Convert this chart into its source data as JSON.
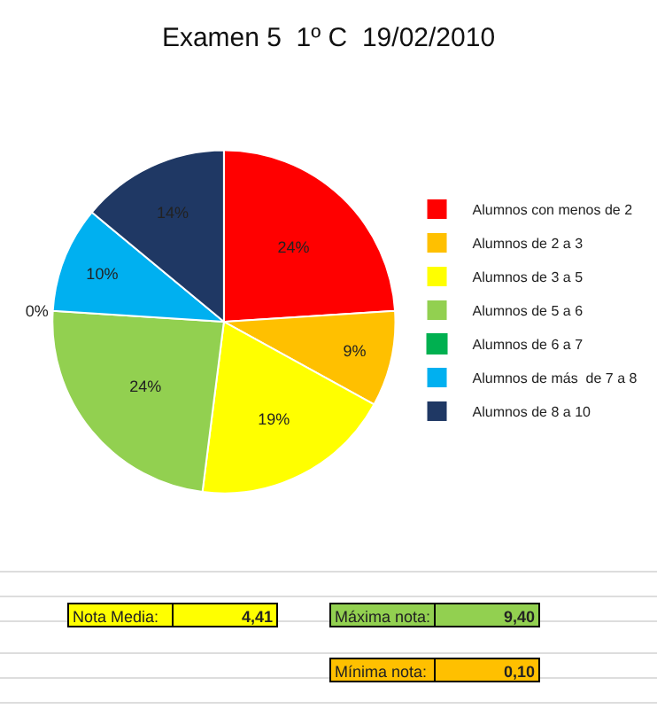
{
  "chart_data": {
    "type": "pie",
    "title": "Examen 5  1º C  19/02/2010",
    "categories": [
      "Alumnos con menos de 2",
      "Alumnos de 2 a 3",
      "Alumnos de 3 a 5",
      "Alumnos de 5 a 6",
      "Alumnos de 6 a 7",
      "Alumnos de más  de 7 a 8",
      "Alumnos de 8 a 10"
    ],
    "values": [
      24,
      9,
      19,
      24,
      0,
      10,
      14
    ],
    "value_labels": [
      "24%",
      "9%",
      "19%",
      "24%",
      "0%",
      "10%",
      "14%"
    ],
    "colors": [
      "#ff0000",
      "#ffc000",
      "#ffff00",
      "#92d050",
      "#00b050",
      "#00b0f0",
      "#1f3864"
    ],
    "legend": "right",
    "annotations": [
      "Nota Media:",
      "4,41",
      "Máxima nota:",
      "9,40",
      "Mínima nota:",
      "0,10"
    ]
  }
}
